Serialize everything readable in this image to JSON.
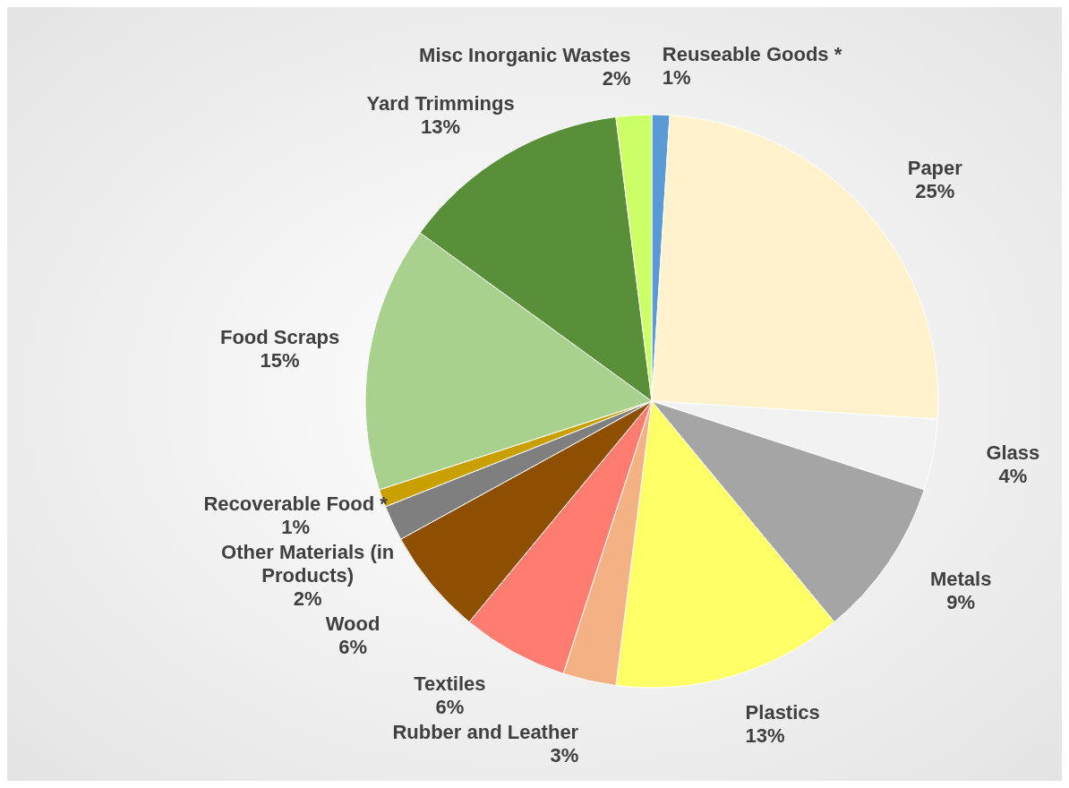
{
  "chart_data": {
    "type": "pie",
    "categories": [
      "Reuseable Goods *",
      "Paper",
      "Glass",
      "Metals",
      "Plastics",
      "Rubber and Leather",
      "Textiles",
      "Wood",
      "Other Materials (in Products)",
      "Recoverable Food *",
      "Food Scraps",
      "Yard Trimmings",
      "Misc Inorganic Wastes"
    ],
    "values": [
      1,
      25,
      4,
      9,
      13,
      3,
      6,
      6,
      2,
      1,
      15,
      13,
      2
    ],
    "value_labels": [
      "1%",
      "25%",
      "4%",
      "9%",
      "13%",
      "3%",
      "6%",
      "6%",
      "2%",
      "1%",
      "15%",
      "13%",
      "2%"
    ],
    "colors": [
      "#5b9bd5",
      "#fff2cc",
      "#f2f2f2",
      "#a5a5a5",
      "#ffff66",
      "#f4b183",
      "#ff7c70",
      "#8f4f00",
      "#7f7f7f",
      "#c9a000",
      "#a9d18e",
      "#5a8f3a",
      "#ccff66"
    ]
  }
}
